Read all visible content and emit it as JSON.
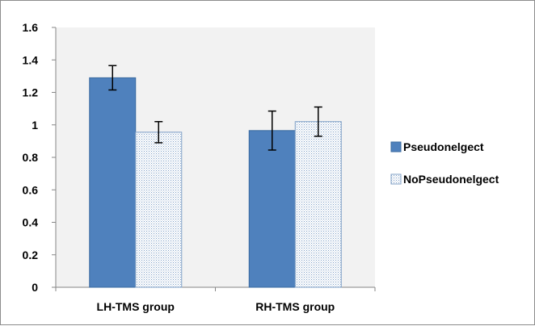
{
  "chart_data": {
    "type": "bar",
    "categories": [
      "LH-TMS group",
      "RH-TMS group"
    ],
    "series": [
      {
        "name": "Pseudonelgect",
        "values": [
          1.29,
          0.965
        ],
        "errors": [
          0.075,
          0.12
        ],
        "color": "#4f81bd",
        "pattern": "solid"
      },
      {
        "name": "NoPseudonelgect",
        "values": [
          0.955,
          1.02
        ],
        "errors": [
          0.065,
          0.09
        ],
        "color": "#c6d5e8",
        "pattern": "dotted"
      }
    ],
    "ylim": [
      0,
      1.6
    ],
    "yticks": [
      "0",
      "0.2",
      "0.4",
      "0.6",
      "0.8",
      "1",
      "1.2",
      "1.4",
      "1.6"
    ],
    "title": "",
    "xlabel": "",
    "ylabel": "",
    "grid": false,
    "legend_position": "right",
    "plot_background": "#f2f2f2"
  }
}
